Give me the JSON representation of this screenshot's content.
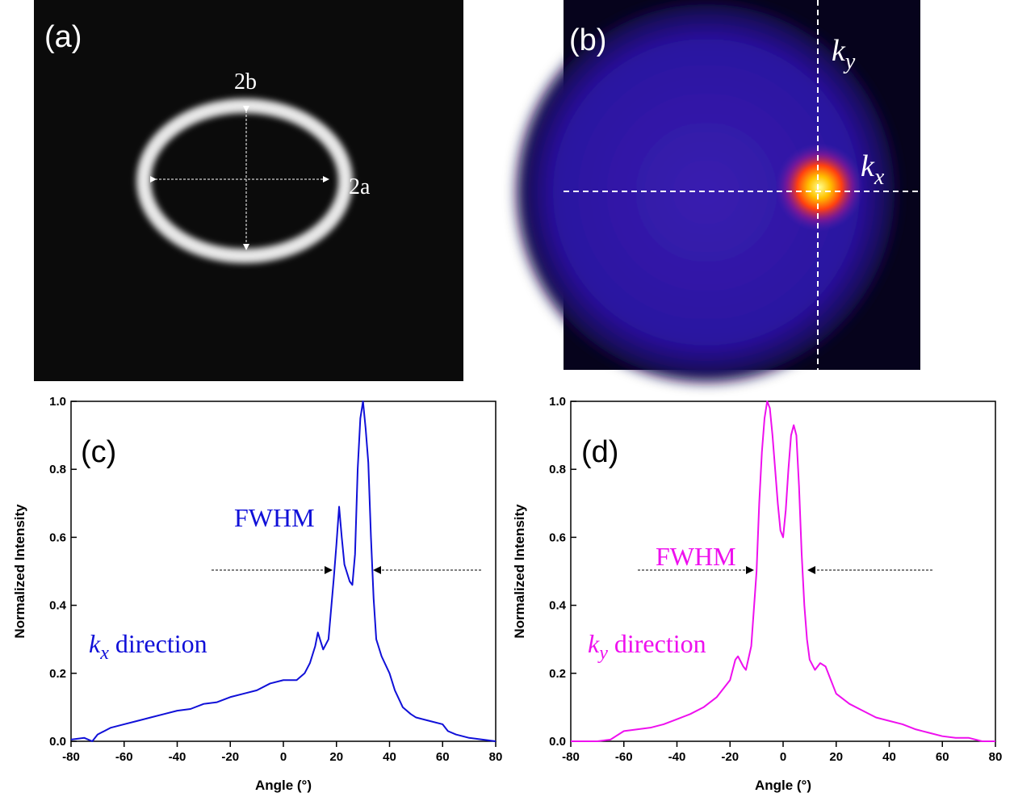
{
  "images": [
    {
      "label": "(a)",
      "height_label": "2b",
      "width_label": "2a"
    },
    {
      "label": "(b)",
      "ky_symbol": "k",
      "ky_subscript": "y",
      "kx_symbol": "k",
      "kx_subscript": "x"
    }
  ],
  "chart_data": [
    {
      "type": "line",
      "color": "#1010d8",
      "x_label": "Angle (°)",
      "y_label": "Normalized Intensity",
      "xlim": [
        -80,
        80
      ],
      "ylim": [
        0,
        1
      ],
      "xticks": [
        -80,
        -60,
        -40,
        -20,
        0,
        20,
        40,
        60,
        80
      ],
      "yticks": [
        {
          "value": 0,
          "label": "0.0"
        },
        0.2,
        0.4,
        0.6,
        0.8,
        {
          "value": 1,
          "label": "1.0"
        }
      ],
      "annotations": {
        "panel": "(c)",
        "fwhm": "FWHM",
        "symbol": "k",
        "subscript": "x",
        "direction": "direction"
      },
      "x": [
        -80,
        -75,
        -72,
        -70,
        -65,
        -60,
        -55,
        -50,
        -45,
        -40,
        -35,
        -30,
        -25,
        -20,
        -15,
        -10,
        -5,
        0,
        5,
        8,
        10,
        12,
        13,
        15,
        17,
        19,
        20,
        21,
        22,
        23,
        25,
        26,
        27,
        28,
        29,
        30,
        31,
        32,
        33,
        34,
        35,
        37,
        40,
        42,
        45,
        48,
        50,
        55,
        60,
        62,
        65,
        70,
        75,
        80
      ],
      "values": [
        0.005,
        0.01,
        0.0,
        0.02,
        0.04,
        0.05,
        0.06,
        0.07,
        0.08,
        0.09,
        0.095,
        0.11,
        0.115,
        0.13,
        0.14,
        0.15,
        0.17,
        0.18,
        0.18,
        0.2,
        0.23,
        0.28,
        0.32,
        0.27,
        0.3,
        0.48,
        0.58,
        0.69,
        0.6,
        0.52,
        0.47,
        0.46,
        0.55,
        0.8,
        0.95,
        1.0,
        0.92,
        0.82,
        0.6,
        0.42,
        0.3,
        0.25,
        0.2,
        0.15,
        0.1,
        0.08,
        0.07,
        0.06,
        0.05,
        0.03,
        0.02,
        0.01,
        0.005,
        0.0
      ]
    },
    {
      "type": "line",
      "color": "#ee10ee",
      "x_label": "Angle (°)",
      "y_label": "Normalized Intensity",
      "xlim": [
        -80,
        80
      ],
      "ylim": [
        0,
        1
      ],
      "xticks": [
        -80,
        -60,
        -40,
        -20,
        0,
        20,
        40,
        60,
        80
      ],
      "yticks": [
        {
          "value": 0,
          "label": "0.0"
        },
        0.2,
        0.4,
        0.6,
        0.8,
        {
          "value": 1,
          "label": "1.0"
        }
      ],
      "annotations": {
        "panel": "(d)",
        "fwhm": "FWHM",
        "symbol": "k",
        "subscript": "y",
        "direction": "direction"
      },
      "x": [
        -80,
        -70,
        -65,
        -60,
        -55,
        -50,
        -45,
        -40,
        -35,
        -30,
        -25,
        -20,
        -18,
        -17,
        -15,
        -14,
        -12,
        -10,
        -9,
        -8,
        -7,
        -6,
        -5,
        -4,
        -3,
        -2,
        -1,
        0,
        1,
        2,
        3,
        4,
        5,
        6,
        7,
        8,
        9,
        10,
        12,
        14,
        16,
        18,
        20,
        25,
        30,
        35,
        40,
        45,
        50,
        55,
        60,
        65,
        70,
        75,
        80
      ],
      "values": [
        0.0,
        0.0,
        0.005,
        0.03,
        0.035,
        0.04,
        0.05,
        0.065,
        0.08,
        0.1,
        0.13,
        0.18,
        0.24,
        0.25,
        0.22,
        0.21,
        0.28,
        0.5,
        0.7,
        0.85,
        0.95,
        1.0,
        0.98,
        0.9,
        0.8,
        0.7,
        0.62,
        0.6,
        0.68,
        0.8,
        0.9,
        0.93,
        0.9,
        0.75,
        0.55,
        0.4,
        0.3,
        0.24,
        0.21,
        0.23,
        0.22,
        0.18,
        0.14,
        0.11,
        0.09,
        0.07,
        0.06,
        0.05,
        0.035,
        0.025,
        0.015,
        0.01,
        0.01,
        0.0,
        0.0
      ]
    }
  ]
}
